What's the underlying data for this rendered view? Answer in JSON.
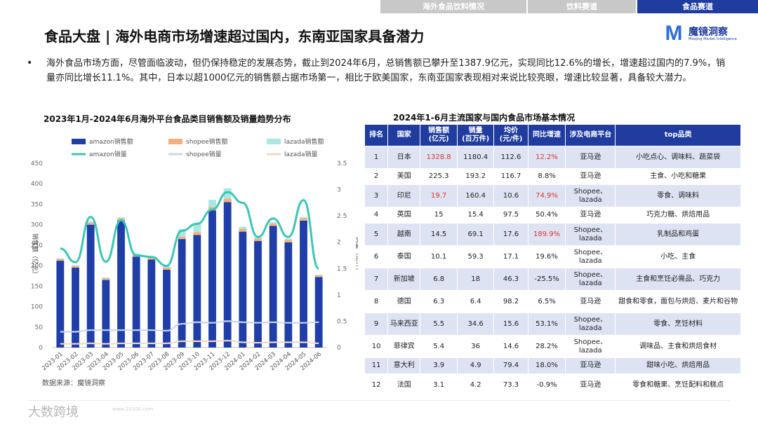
{
  "tabs": [
    {
      "label": "海外食品饮料情况",
      "active": false
    },
    {
      "label": "饮料赛道",
      "active": false
    },
    {
      "label": "食品赛道",
      "active": true
    }
  ],
  "header": {
    "title": "食品大盘 | 海外电商市场增速超过国内，东南亚国家具备潜力",
    "logo_name": "魔镜洞察",
    "logo_tagline": "Moojing Market Intelligence",
    "logo_letter": "M"
  },
  "summary": {
    "bullet": "•",
    "text": "海外食品市场方面，尽管面临波动，但仍保持稳定的发展态势，截止到2024年6月，总销售额已攀升至1387.9亿元，实现同比12.6%的增长，增速超过国内的7.9%，销量亦同比增长11.1%。其中，日本以超1000亿元的销售额占据市场第一，相比于欧美国家，东南亚国家表现相对来说比较亮眼，增速比较显著，具备较大潜力。"
  },
  "chart_data": {
    "type": "bar",
    "title": "2023年1月-2024年6月海外平台食品类目销售额及销量趋势分布",
    "ylabel": "销售额（亿元）",
    "y2label": "销量（亿件）",
    "ylim": [
      0,
      450
    ],
    "y2lim": [
      0,
      3.5
    ],
    "yticks": [
      0,
      50,
      100,
      150,
      200,
      250,
      300,
      350,
      400,
      450
    ],
    "y2ticks": [
      0,
      0.5,
      1,
      1.5,
      2,
      2.5,
      3,
      3.5
    ],
    "categories": [
      "2023-01",
      "2023-02",
      "2023-03",
      "2023-04",
      "2023-05",
      "2023-06",
      "2023-07",
      "2023-08",
      "2023-09",
      "2023-10",
      "2023-11",
      "2023-12",
      "2024-01",
      "2024-02",
      "2024-03",
      "2024-04",
      "2024-05",
      "2024-06"
    ],
    "stacked": true,
    "series": [
      {
        "name": "amazon销售额",
        "kind": "bar",
        "axis": "left",
        "color": "#1f3ea8",
        "values": [
          212,
          195,
          300,
          165,
          310,
          222,
          215,
          190,
          265,
          275,
          335,
          355,
          283,
          260,
          297,
          257,
          310,
          172
        ]
      },
      {
        "name": "shopee销售额",
        "kind": "bar",
        "axis": "left",
        "color": "#f2b07e",
        "values": [
          4,
          4,
          5,
          4,
          5,
          5,
          5,
          5,
          6,
          7,
          8,
          9,
          7,
          6,
          6,
          6,
          6,
          4
        ]
      },
      {
        "name": "lazada销售额",
        "kind": "bar",
        "axis": "left",
        "color": "#a9e8e3",
        "values": [
          2,
          2,
          3,
          2,
          3,
          3,
          3,
          3,
          18,
          20,
          18,
          25,
          5,
          3,
          3,
          3,
          3,
          2
        ]
      },
      {
        "name": "amazon销量",
        "kind": "line",
        "axis": "right",
        "color": "#3cc5b5",
        "values": [
          1.88,
          1.62,
          2.48,
          1.63,
          2.42,
          1.75,
          1.72,
          1.55,
          2.22,
          2.35,
          2.62,
          2.95,
          2.75,
          2.1,
          2.45,
          2.1,
          2.8,
          1.5
        ]
      },
      {
        "name": "shopee销量",
        "kind": "line",
        "axis": "right",
        "color": "#c9d5ee",
        "values": [
          0.3,
          0.3,
          0.33,
          0.33,
          0.33,
          0.33,
          0.33,
          0.32,
          0.45,
          0.48,
          0.47,
          0.5,
          0.48,
          0.47,
          0.48,
          0.47,
          0.47,
          0.48
        ]
      },
      {
        "name": "lazada销量",
        "kind": "line",
        "axis": "right",
        "color": "#f0d9c6",
        "values": [
          0.07,
          0.07,
          0.08,
          0.07,
          0.08,
          0.08,
          0.08,
          0.08,
          0.12,
          0.12,
          0.12,
          0.13,
          0.1,
          0.09,
          0.1,
          0.1,
          0.1,
          0.08
        ]
      }
    ],
    "legend_position": "top",
    "grid": false
  },
  "table": {
    "title": "2024年1-6月主流国家与国内食品市场基本情况",
    "headers": [
      "排名",
      "国家",
      "销售额\n(亿元)",
      "销量\n(百万件)",
      "均价\n(元/件)",
      "同比增速",
      "涉及电商平台",
      "top品类"
    ],
    "rows": [
      [
        "1",
        "日本",
        "1328.8",
        "1180.4",
        "112.6",
        "12.2%",
        "亚马逊",
        "小吃点心、调味料、蔬菜袋"
      ],
      [
        "2",
        "美国",
        "225.3",
        "193.2",
        "116.7",
        "8.8%",
        "亚马逊",
        "主食、小吃和糖果"
      ],
      [
        "3",
        "印尼",
        "19.7",
        "160.4",
        "10.6",
        "74.9%",
        "Shopee、\nlazada",
        "零食、调味料"
      ],
      [
        "4",
        "英国",
        "15",
        "15.4",
        "97.5",
        "50.4%",
        "亚马逊",
        "巧克力糖、烘焙用品"
      ],
      [
        "5",
        "越南",
        "14.5",
        "69.1",
        "17.6",
        "189.9%",
        "Shopee、\nlazada",
        "乳制品和鸡蛋"
      ],
      [
        "6",
        "泰国",
        "10.1",
        "59.3",
        "17.1",
        "19.6%",
        "Shopee、\nlazada",
        "小吃、主食"
      ],
      [
        "7",
        "新加坡",
        "6.8",
        "18",
        "46.3",
        "-25.5%",
        "Shopee、\nlazada",
        "主食和烹饪必需品、巧克力"
      ],
      [
        "8",
        "德国",
        "6.3",
        "6.4",
        "98.2",
        "6.5%",
        "亚马逊",
        "甜食和零食，面包与烘焙、麦片和谷物"
      ],
      [
        "9",
        "马来西亚",
        "5.5",
        "34.6",
        "15.6",
        "53.1%",
        "Shopee、\nlazada",
        "零食、烹饪材料"
      ],
      [
        "10",
        "菲律宾",
        "5.4",
        "36",
        "14.6",
        "28.2%",
        "Shopee、\nlazada",
        "调味品、主食和烘焙食材"
      ],
      [
        "11",
        "意大利",
        "3.9",
        "4.9",
        "79.4",
        "18.0%",
        "亚马逊",
        "甜味小吃、烘焙用品"
      ],
      [
        "12",
        "法国",
        "3.1",
        "4.2",
        "73.3",
        "-0.9%",
        "亚马逊",
        "零食和糖果、烹饪配料和糕点"
      ]
    ],
    "highlight_cells": [
      [
        0,
        2
      ],
      [
        0,
        5
      ],
      [
        2,
        2
      ],
      [
        2,
        5
      ],
      [
        4,
        5
      ]
    ],
    "highlight_color": "#e03131",
    "header_color": "#1f3c9e",
    "stripe_color": "#dde3f3"
  },
  "source": "数据来源：魔镜洞察",
  "watermark": {
    "text": "大数跨境",
    "sub": "www.10100.com"
  },
  "colors": {
    "accent": "#1f3c9e",
    "tab_inactive": "#c8c8c8"
  }
}
